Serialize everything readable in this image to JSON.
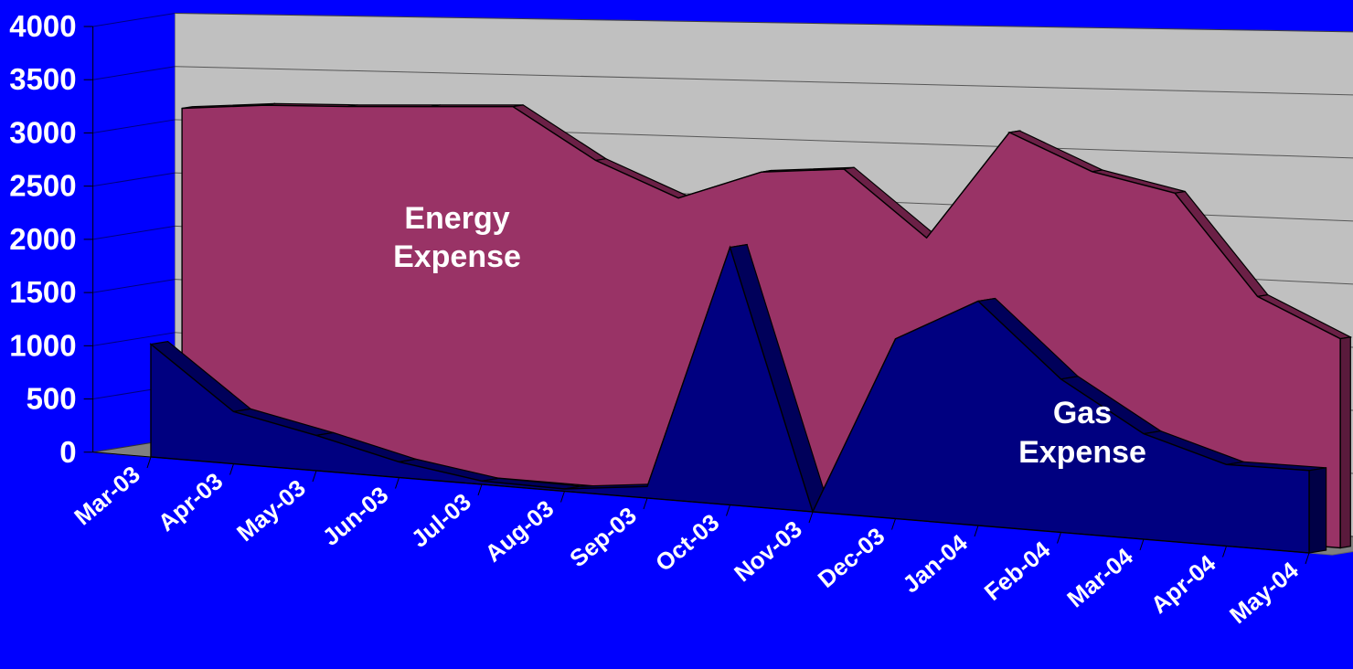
{
  "chart_data": {
    "type": "area",
    "three_d": true,
    "categories": [
      "Mar-03",
      "Apr-03",
      "May-03",
      "Jun-03",
      "Jul-03",
      "Aug-03",
      "Sep-03",
      "Oct-03",
      "Nov-03",
      "Dec-03",
      "Jan-04",
      "Feb-04",
      "Mar-04",
      "Apr-04",
      "May-04"
    ],
    "ylim": [
      0,
      4000
    ],
    "yticks": [
      "0",
      "500",
      "1000",
      "1500",
      "2000",
      "2500",
      "3000",
      "3500",
      "4000"
    ],
    "grid": true,
    "legend": "none",
    "series": [
      {
        "name": "Energy Expense",
        "color": "#993366",
        "values": [
          3200,
          3250,
          3260,
          3280,
          3300,
          2850,
          2550,
          2800,
          2850,
          2300,
          3200,
          2900,
          2750,
          1950,
          1650
        ]
      },
      {
        "name": "Gas Expense",
        "color": "#000080",
        "values": [
          1050,
          480,
          320,
          140,
          30,
          20,
          100,
          2200,
          0,
          1500,
          1850,
          1250,
          850,
          650,
          650
        ]
      }
    ],
    "annotations": [
      {
        "series": "Energy Expense",
        "lines": [
          "Energy",
          "Expense"
        ]
      },
      {
        "series": "Gas Expense",
        "lines": [
          "Gas",
          "Expense"
        ]
      }
    ]
  }
}
